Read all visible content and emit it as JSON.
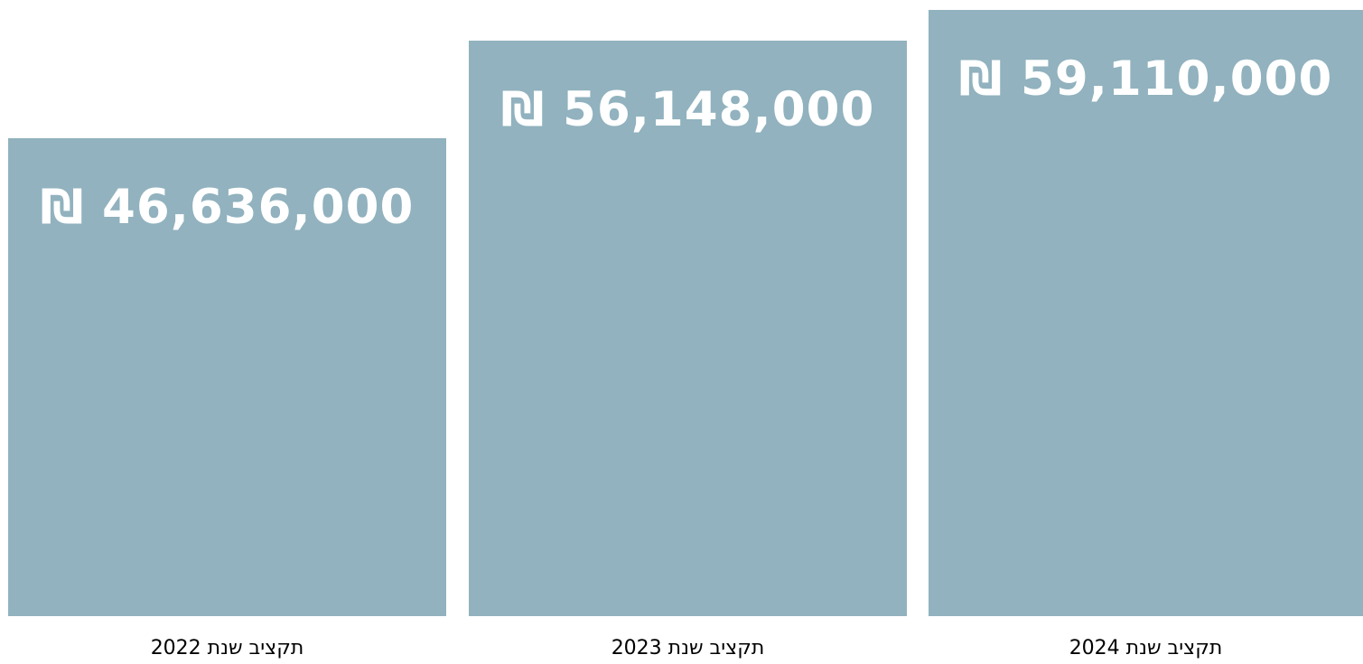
{
  "chart_data": {
    "type": "bar",
    "title": "",
    "xlabel": "",
    "ylabel": "",
    "categories": [
      "תקציב שנת 2022",
      "תקציב שנת 2023",
      "תקציב שנת 2024"
    ],
    "values": [
      46636000,
      56148000,
      59110000
    ],
    "value_labels": [
      "₪ 46,636,000",
      "₪ 56,148,000",
      "₪ 59,110,000"
    ],
    "colors": {
      "bar": "#91b2be",
      "value_text": "#ffffff",
      "label_text": "#000000"
    }
  }
}
